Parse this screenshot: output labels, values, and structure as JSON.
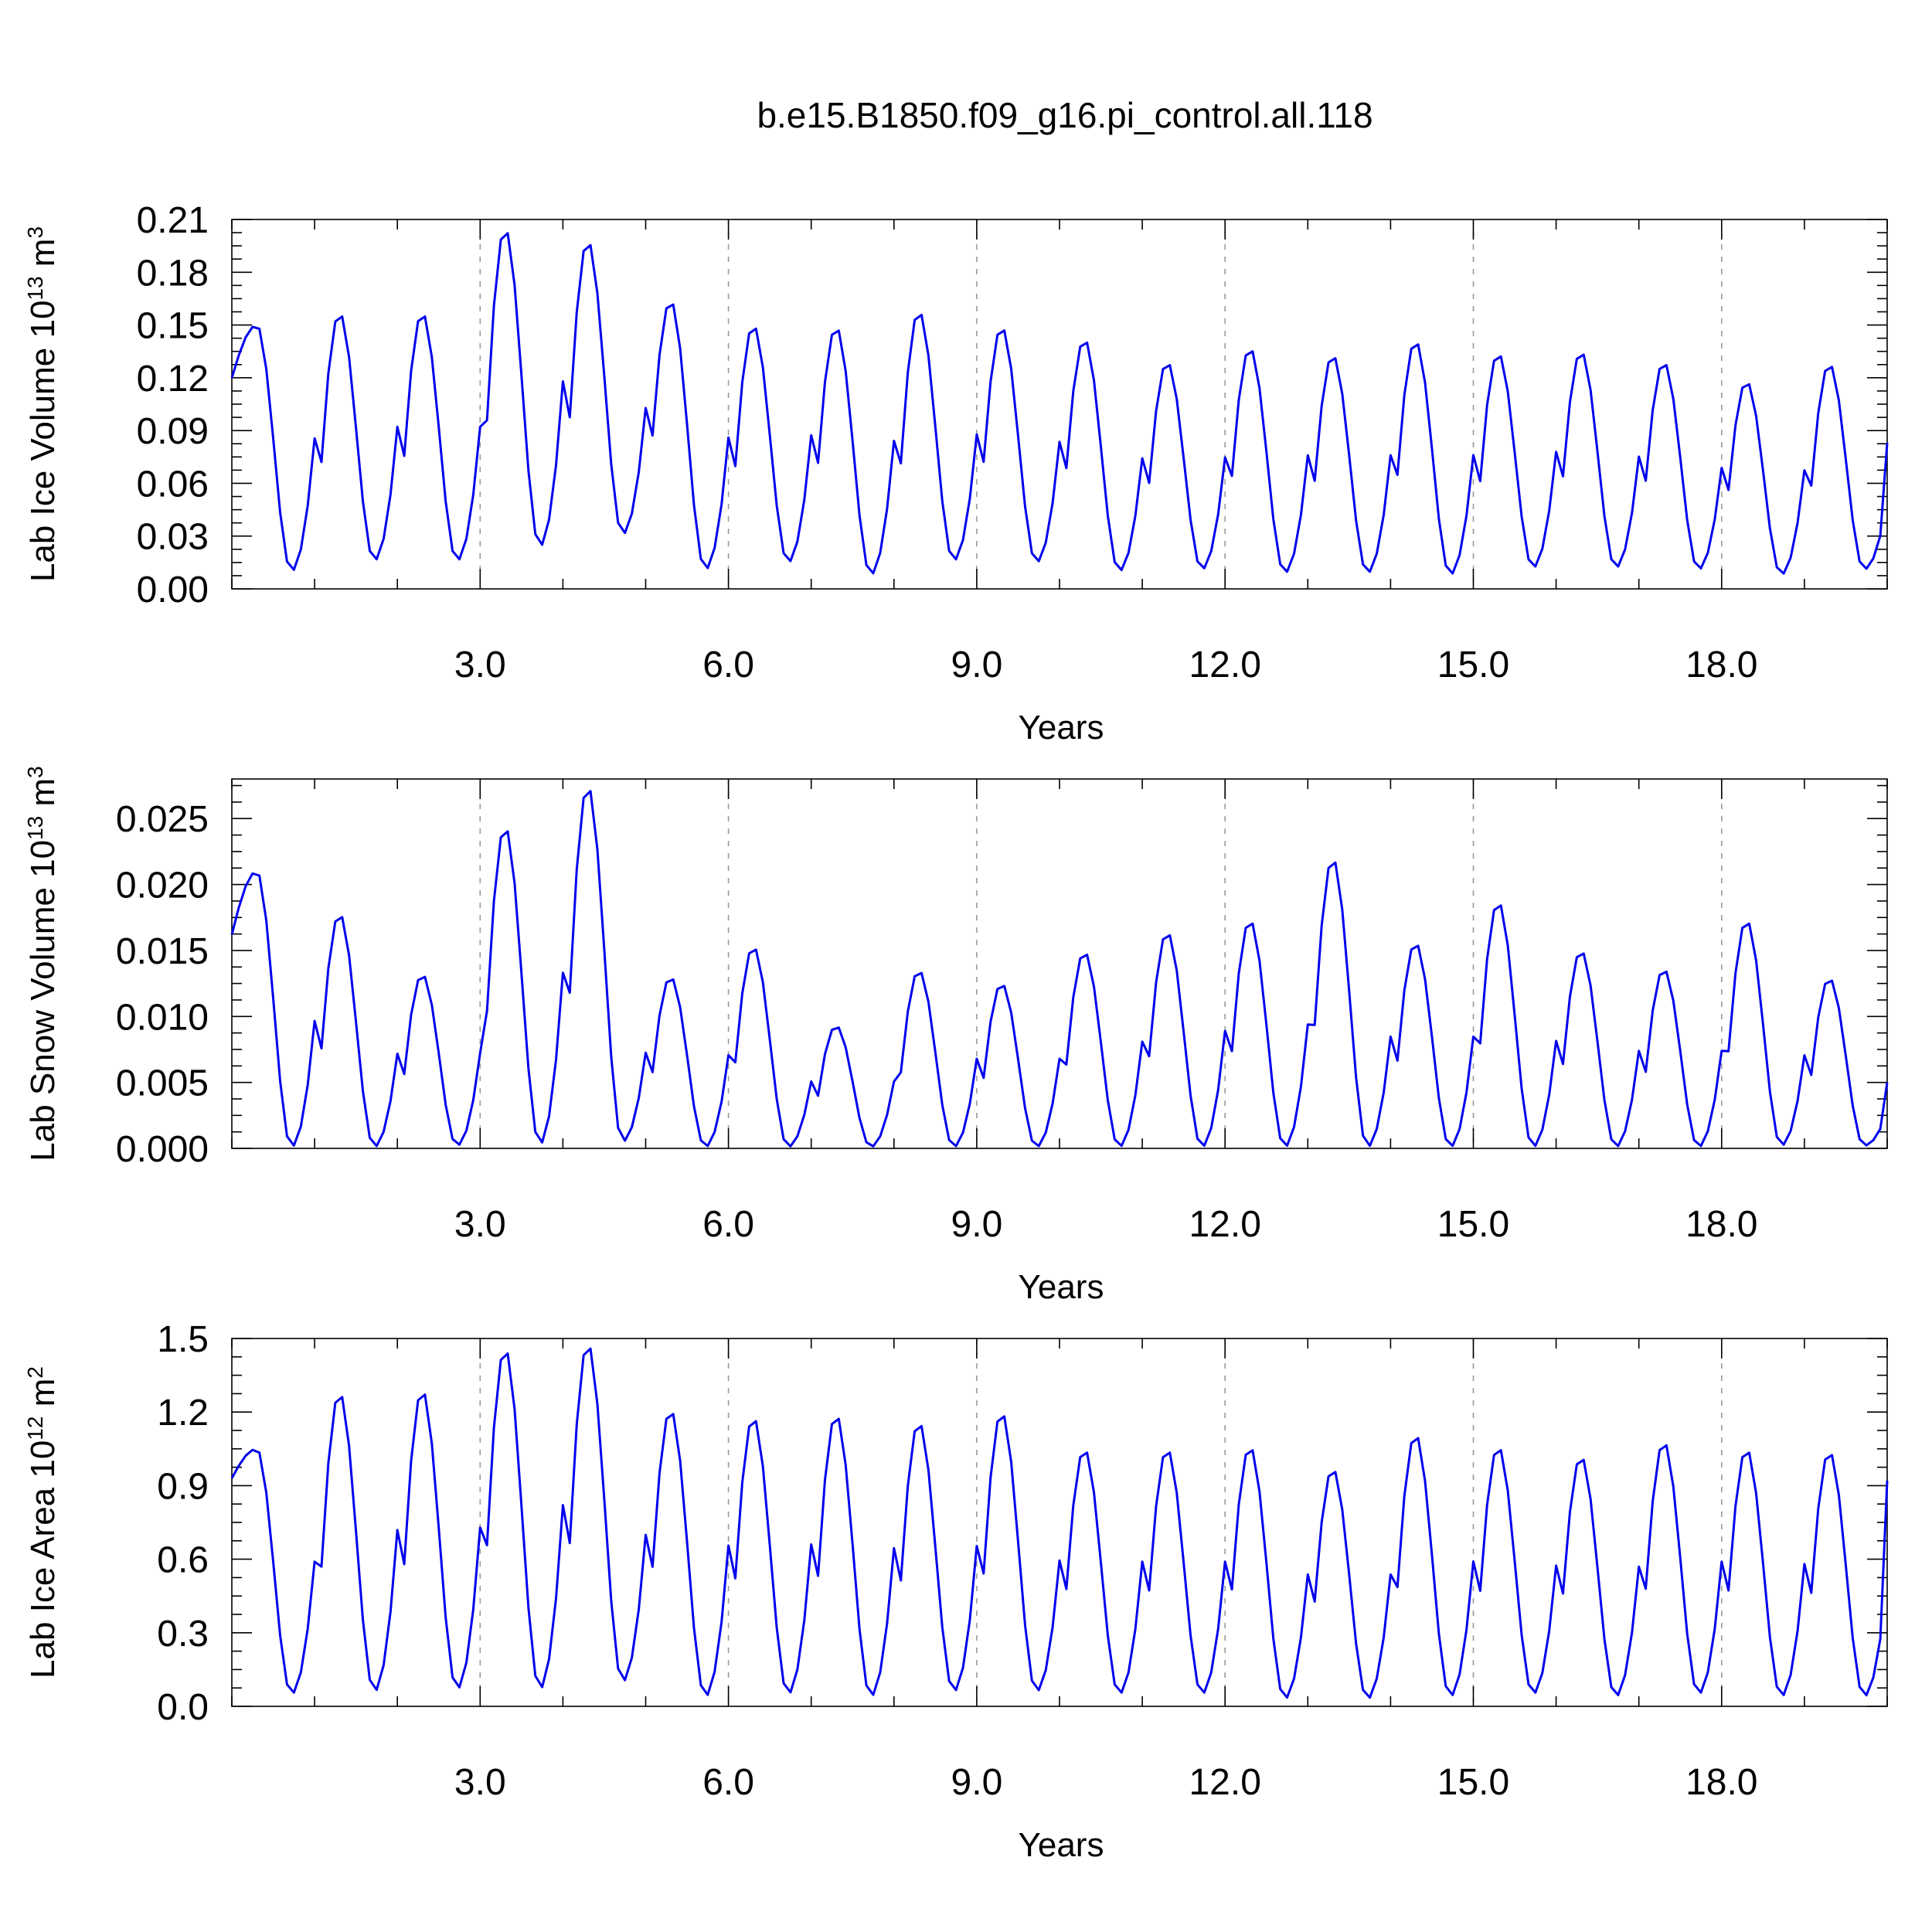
{
  "title": "b.e15.B1850.f09_g16.pi_control.all.118",
  "line_color": "#0000ee",
  "chart_data": [
    {
      "type": "line",
      "name": "ice-volume",
      "ylabel_main": "Lab Ice Volume 10",
      "ylabel_exp": "13",
      "ylabel_unit": " m",
      "ylabel_unit_exp": "3",
      "xlabel": "Years",
      "xlim": [
        0,
        20
      ],
      "ylim": [
        0,
        0.21
      ],
      "xticks": [
        3,
        6,
        9,
        12,
        15,
        18
      ],
      "xtick_labels": [
        "3.0",
        "6.0",
        "9.0",
        "12.0",
        "15.0",
        "18.0"
      ],
      "yticks": [
        0,
        0.03,
        0.06,
        0.09,
        0.12,
        0.15,
        0.18,
        0.21
      ],
      "ytick_labels": [
        "0.00",
        "0.03",
        "0.06",
        "0.09",
        "0.12",
        "0.15",
        "0.18",
        "0.21"
      ],
      "vgrid": [
        3,
        6,
        9,
        12,
        15,
        18
      ],
      "series": [
        {
          "peaks": [
            0.15,
            0.157,
            0.157,
            0.205,
            0.198,
            0.164,
            0.15,
            0.149,
            0.158,
            0.149,
            0.142,
            0.129,
            0.137,
            0.133,
            0.141,
            0.134,
            0.135,
            0.129,
            0.118,
            0.128
          ],
          "troughs": [
            0.01,
            0.016,
            0.016,
            0.024,
            0.031,
            0.011,
            0.015,
            0.008,
            0.016,
            0.015,
            0.01,
            0.011,
            0.009,
            0.009,
            0.008,
            0.012,
            0.012,
            0.011,
            0.008,
            0.011
          ],
          "start": 0.12,
          "end": 0.083
        }
      ]
    },
    {
      "type": "line",
      "name": "snow-volume",
      "ylabel_main": "Lab Snow Volume 10",
      "ylabel_exp": "13",
      "ylabel_unit": " m",
      "ylabel_unit_exp": "3",
      "xlabel": "Years",
      "xlim": [
        0,
        20
      ],
      "ylim": [
        0,
        0.028
      ],
      "xticks": [
        3,
        6,
        9,
        12,
        15,
        18
      ],
      "xtick_labels": [
        "3.0",
        "6.0",
        "9.0",
        "12.0",
        "15.0",
        "18.0"
      ],
      "yticks": [
        0,
        0.005,
        0.01,
        0.015,
        0.02,
        0.025
      ],
      "ytick_labels": [
        "0.000",
        "0.005",
        "0.010",
        "0.015",
        "0.020",
        "0.025"
      ],
      "vgrid": [
        3,
        6,
        9,
        12,
        15,
        18
      ],
      "series": [
        {
          "peaks": [
            0.021,
            0.0178,
            0.0132,
            0.0244,
            0.0275,
            0.013,
            0.0153,
            0.0093,
            0.0135,
            0.0125,
            0.0149,
            0.0164,
            0.0173,
            0.022,
            0.0156,
            0.0187,
            0.015,
            0.0136,
            0.0173,
            0.0129
          ],
          "troughs": [
            0.0001,
            0.0001,
            0.0002,
            0.0003,
            0.0005,
            0.0001,
            0.0001,
            0.0001,
            0.0001,
            0.0001,
            0.0001,
            0.0001,
            0.0001,
            0.0001,
            0.0001,
            0.0001,
            0.0001,
            0.0001,
            0.0002,
            0.0002
          ],
          "start": 0.0162,
          "end": 0.005
        }
      ]
    },
    {
      "type": "line",
      "name": "ice-area",
      "ylabel_main": "Lab Ice Area 10",
      "ylabel_exp": "12",
      "ylabel_unit": " m",
      "ylabel_unit_exp": "2",
      "xlabel": "Years",
      "xlim": [
        0,
        20
      ],
      "ylim": [
        0,
        1.5
      ],
      "xticks": [
        3,
        6,
        9,
        12,
        15,
        18
      ],
      "xtick_labels": [
        "3.0",
        "6.0",
        "9.0",
        "12.0",
        "15.0",
        "18.0"
      ],
      "yticks": [
        0,
        0.3,
        0.6,
        0.9,
        1.2,
        1.5
      ],
      "ytick_labels": [
        "0.0",
        "0.3",
        "0.6",
        "0.9",
        "1.2",
        "1.5"
      ],
      "vgrid": [
        3,
        6,
        9,
        12,
        15,
        18
      ],
      "series": [
        {
          "peaks": [
            1.05,
            1.28,
            1.29,
            1.46,
            1.48,
            1.21,
            1.18,
            1.19,
            1.16,
            1.2,
            1.05,
            1.05,
            1.06,
            0.97,
            1.11,
            1.06,
            1.02,
            1.08,
            1.05,
            1.04
          ],
          "troughs": [
            0.05,
            0.06,
            0.07,
            0.07,
            0.1,
            0.04,
            0.05,
            0.04,
            0.06,
            0.06,
            0.05,
            0.05,
            0.03,
            0.03,
            0.04,
            0.05,
            0.04,
            0.05,
            0.04,
            0.04
          ],
          "start": 0.93,
          "end": 0.92
        }
      ]
    }
  ]
}
